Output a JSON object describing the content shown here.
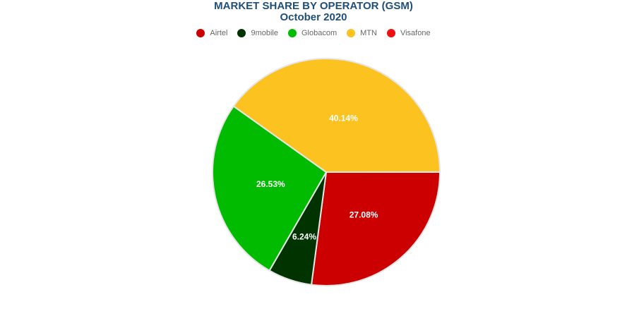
{
  "title": {
    "line1": "MARKET SHARE BY OPERATOR (GSM)",
    "line2": "October 2020"
  },
  "legend": [
    {
      "label": "Airtel",
      "color": "#cc0000"
    },
    {
      "label": "9mobile",
      "color": "#003300"
    },
    {
      "label": "Globacom",
      "color": "#00bb00"
    },
    {
      "label": "MTN",
      "color": "#fcc320"
    },
    {
      "label": "Visafone",
      "color": "#ee1111"
    }
  ],
  "chart_data": {
    "type": "pie",
    "title": "MARKET SHARE BY OPERATOR (GSM)",
    "subtitle": "October 2020",
    "legend_position": "top",
    "slices": [
      {
        "label": "Airtel",
        "value": 27.08,
        "display": "27.08%",
        "color": "#cc0000"
      },
      {
        "label": "9mobile",
        "value": 6.24,
        "display": "6.24%",
        "color": "#003300"
      },
      {
        "label": "Globacom",
        "value": 26.53,
        "display": "26.53%",
        "color": "#00bb00"
      },
      {
        "label": "MTN",
        "value": 40.14,
        "display": "40.14%",
        "color": "#fcc320"
      },
      {
        "label": "Visafone",
        "value": 0.01,
        "display": "",
        "color": "#ee1111"
      }
    ]
  }
}
